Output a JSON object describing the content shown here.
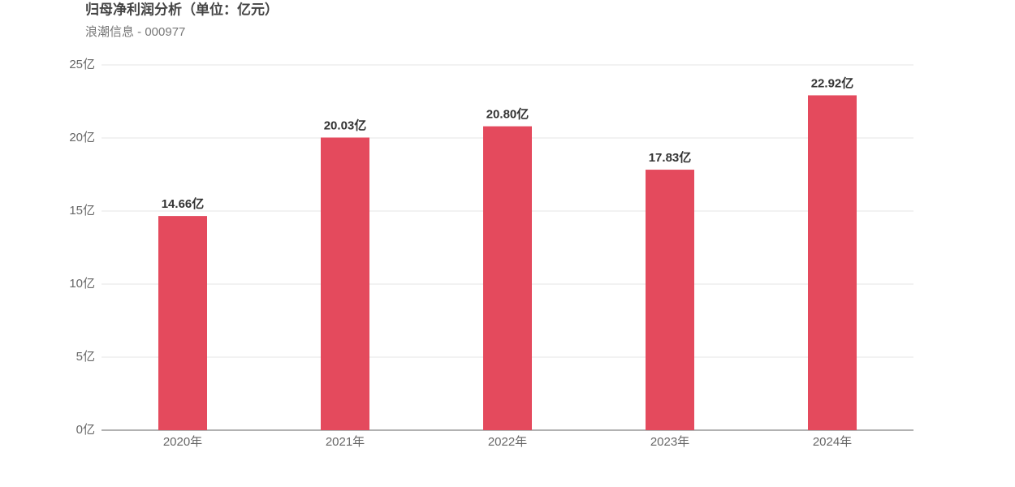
{
  "chart_data": {
    "type": "bar",
    "title": "归母净利润分析（单位：亿元）",
    "subtitle": "浪潮信息 - 000977",
    "categories": [
      "2020年",
      "2021年",
      "2022年",
      "2023年",
      "2024年"
    ],
    "values": [
      14.66,
      20.03,
      20.8,
      17.83,
      22.92
    ],
    "value_labels": [
      "14.66亿",
      "20.03亿",
      "20.80亿",
      "17.83亿",
      "22.92亿"
    ],
    "color": "#e44a5d",
    "ylim": [
      0,
      25
    ],
    "yticks": [
      {
        "value": 0,
        "label": "0亿"
      },
      {
        "value": 5,
        "label": "5亿"
      },
      {
        "value": 10,
        "label": "10亿"
      },
      {
        "value": 15,
        "label": "15亿"
      },
      {
        "value": 20,
        "label": "20亿"
      },
      {
        "value": 25,
        "label": "25亿"
      }
    ],
    "grid": true
  }
}
